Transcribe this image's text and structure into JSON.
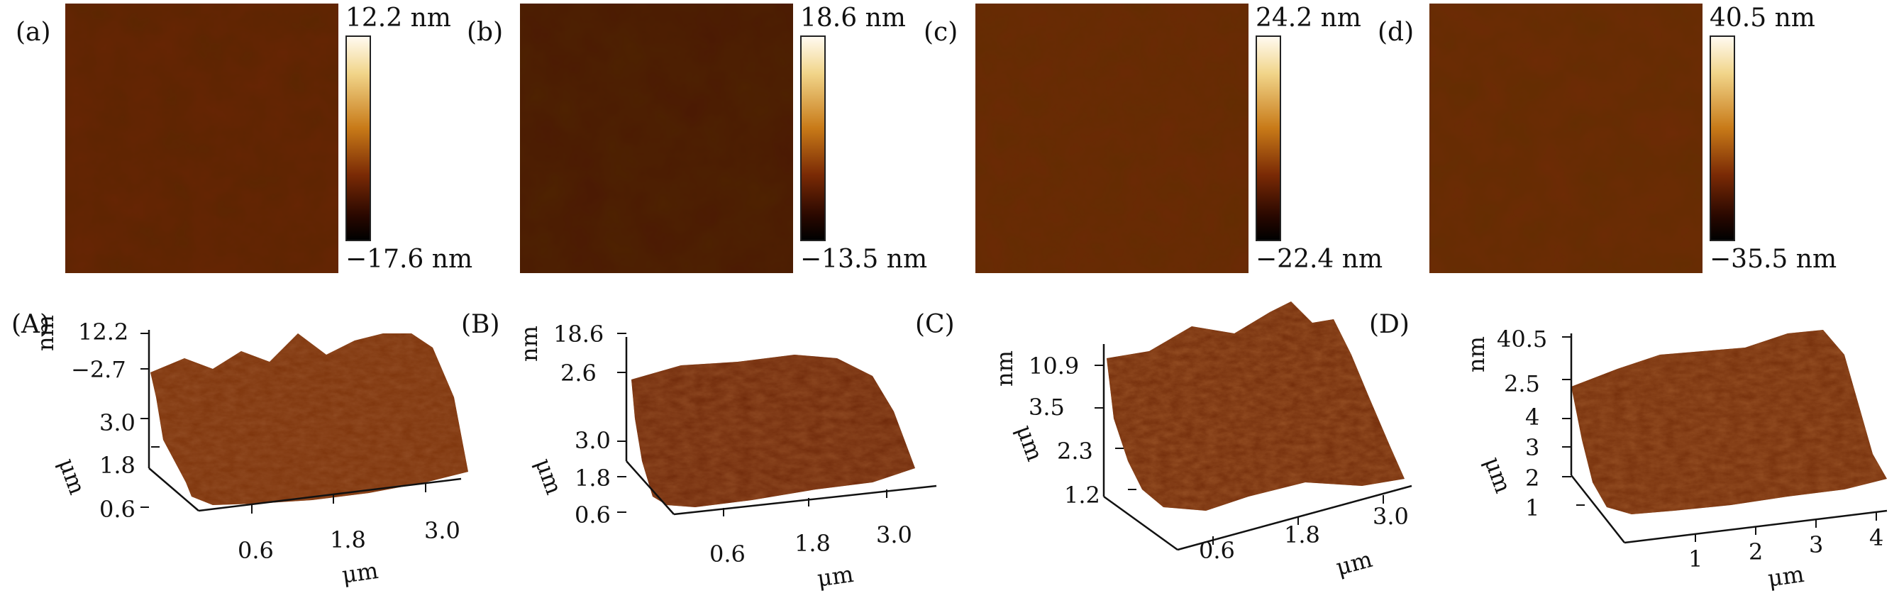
{
  "panels_2d": [
    {
      "label": "(a)",
      "cb_max": "12.2 nm",
      "cb_min": "−17.6 nm"
    },
    {
      "label": "(b)",
      "cb_max": "18.6 nm",
      "cb_min": "−13.5 nm"
    },
    {
      "label": "(c)",
      "cb_max": "24.2 nm",
      "cb_min": "−22.4 nm"
    },
    {
      "label": "(d)",
      "cb_max": "40.5 nm",
      "cb_min": "−35.5 nm"
    }
  ],
  "panels_3d": [
    {
      "label": "(A)",
      "z_unit": "nm",
      "z_ticks": [
        "12.2",
        "−2.7"
      ],
      "y_unit": "μm",
      "y_ticks": [
        "3.0",
        "1.8",
        "0.6"
      ],
      "x_unit": "μm",
      "x_ticks": [
        "0.6",
        "1.8",
        "3.0"
      ]
    },
    {
      "label": "(B)",
      "z_unit": "nm",
      "z_ticks": [
        "18.6",
        "2.6"
      ],
      "y_unit": "μm",
      "y_ticks": [
        "3.0",
        "1.8",
        "0.6"
      ],
      "x_unit": "μm",
      "x_ticks": [
        "0.6",
        "1.8",
        "3.0"
      ]
    },
    {
      "label": "(C)",
      "z_unit": "nm",
      "z_ticks": [
        "10.9",
        "3.5"
      ],
      "y_unit": "μm",
      "y_ticks": [
        "2.3",
        "1.2"
      ],
      "x_unit": "μm",
      "x_ticks": [
        "0.6",
        "1.8",
        "3.0"
      ]
    },
    {
      "label": "(D)",
      "z_unit": "nm",
      "z_ticks": [
        "40.5",
        "2.5"
      ],
      "y_unit": "μm",
      "y_ticks": [
        "4",
        "3",
        "2",
        "1"
      ],
      "x_unit": "μm",
      "x_ticks": [
        "1",
        "2",
        "3",
        "4"
      ]
    }
  ],
  "colors": {
    "afm_dark": "#1a0500",
    "afm_mid": "#7a2a05",
    "afm_orange": "#c87a18",
    "afm_light": "#f1d58a",
    "afm_white": "#fffaf0"
  }
}
